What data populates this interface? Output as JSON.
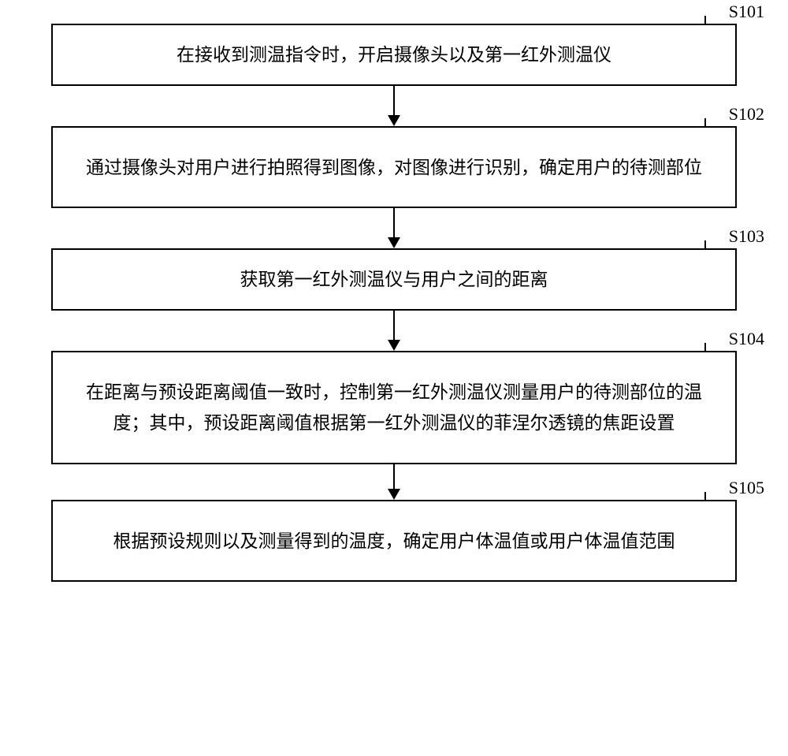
{
  "flowchart": {
    "box_border_color": "#000000",
    "box_bg_color": "#ffffff",
    "text_color": "#000000",
    "font_size": 23,
    "label_font_size": 22,
    "arrow_color": "#000000",
    "steps": [
      {
        "id": "S101",
        "label": "S101",
        "text": "在接收到测温指令时，开启摄像头以及第一红外测温仪",
        "lines": 1,
        "arrow_after_height": 52
      },
      {
        "id": "S102",
        "label": "S102",
        "text": "通过摄像头对用户进行拍照得到图像，对图像进行识别，确定用户的待测部位",
        "lines": 2,
        "arrow_after_height": 52
      },
      {
        "id": "S103",
        "label": "S103",
        "text": "获取第一红外测温仪与用户之间的距离",
        "lines": 1,
        "arrow_after_height": 52
      },
      {
        "id": "S104",
        "label": "S104",
        "text": "在距离与预设距离阈值一致时，控制第一红外测温仪测量用户的待测部位的温度；其中，预设距离阈值根据第一红外测温仪的菲涅尔透镜的焦距设置",
        "lines": 3,
        "arrow_after_height": 46
      },
      {
        "id": "S105",
        "label": "S105",
        "text": "根据预设规则以及测量得到的温度，确定用户体温值或用户体温值范围",
        "lines": 2,
        "arrow_after_height": 0
      }
    ]
  }
}
